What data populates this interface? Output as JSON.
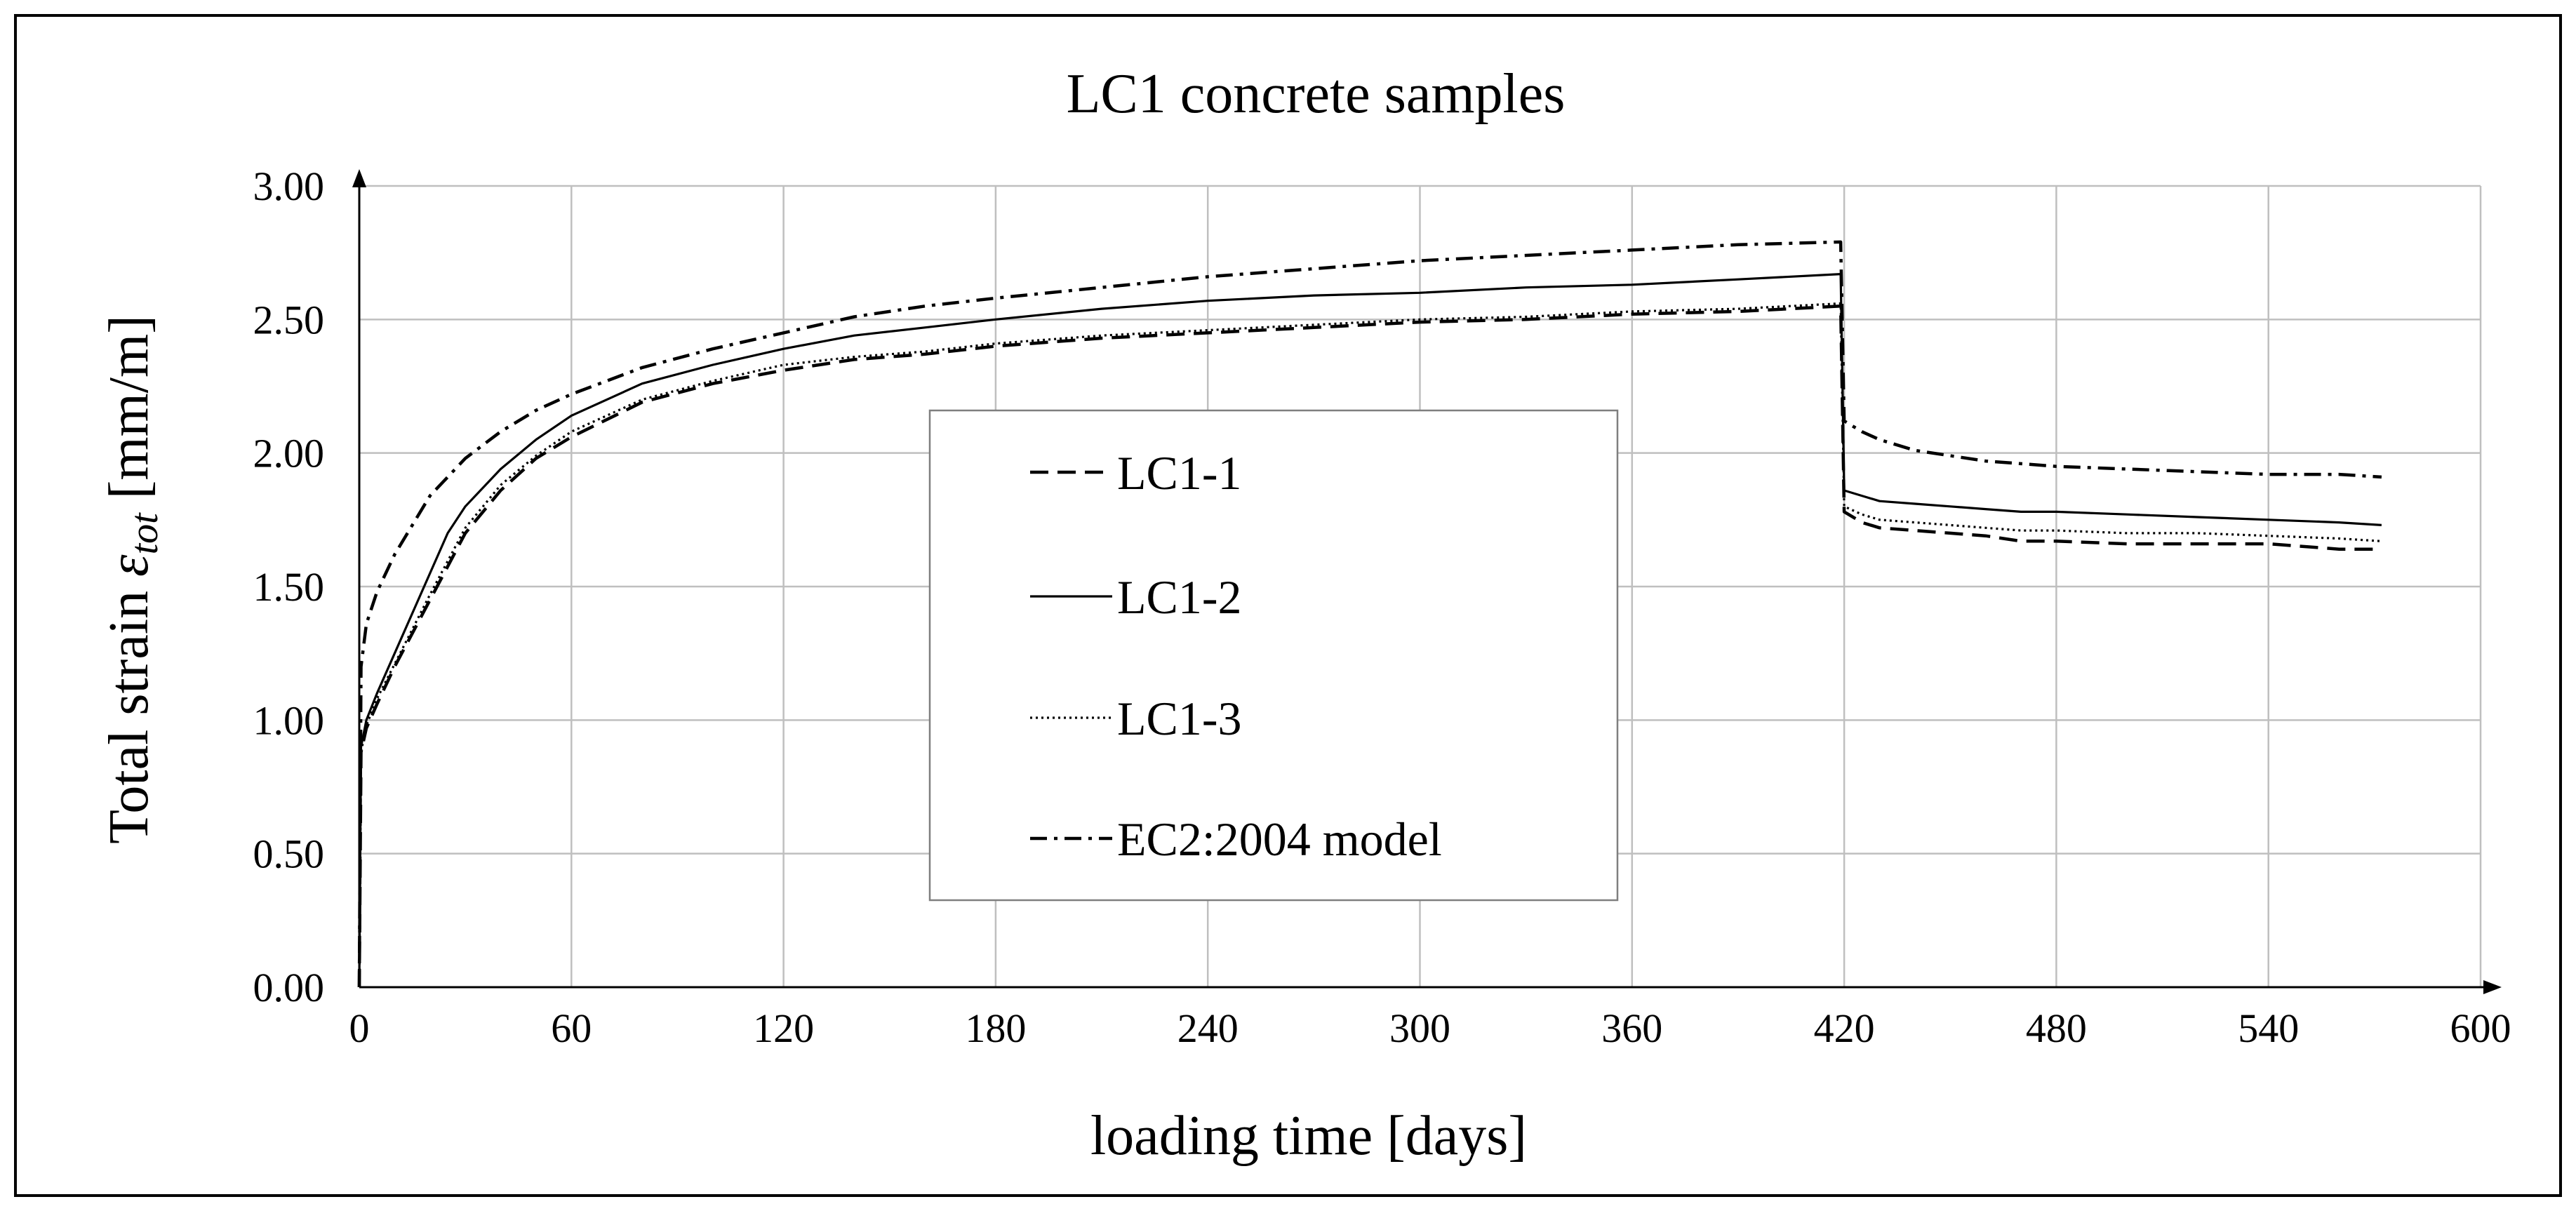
{
  "chart_data": {
    "type": "line",
    "title": "LC1 concrete samples",
    "xlabel": "loading time [days]",
    "ylabel": {
      "prefix": "Total strain ",
      "symbol": "ε",
      "subscript": "tot",
      "suffix": " [mm/m]"
    },
    "xlim": [
      0,
      600
    ],
    "ylim": [
      0,
      3
    ],
    "xticks": [
      "0",
      "60",
      "120",
      "180",
      "240",
      "300",
      "360",
      "420",
      "480",
      "540",
      "600"
    ],
    "yticks": [
      "0.00",
      "0.50",
      "1.00",
      "1.50",
      "2.00",
      "2.50",
      "3.00"
    ],
    "grid": true,
    "legend_position": "center",
    "series": [
      {
        "name": "LC1-1",
        "style": "dashed",
        "points": [
          [
            0,
            0
          ],
          [
            0.5,
            0.88
          ],
          [
            2,
            0.97
          ],
          [
            5,
            1.06
          ],
          [
            10,
            1.2
          ],
          [
            20,
            1.45
          ],
          [
            30,
            1.7
          ],
          [
            40,
            1.86
          ],
          [
            50,
            1.98
          ],
          [
            60,
            2.06
          ],
          [
            80,
            2.19
          ],
          [
            100,
            2.26
          ],
          [
            120,
            2.31
          ],
          [
            140,
            2.35
          ],
          [
            160,
            2.37
          ],
          [
            180,
            2.4
          ],
          [
            210,
            2.43
          ],
          [
            240,
            2.45
          ],
          [
            270,
            2.47
          ],
          [
            300,
            2.49
          ],
          [
            330,
            2.5
          ],
          [
            360,
            2.52
          ],
          [
            390,
            2.53
          ],
          [
            419,
            2.55
          ],
          [
            420,
            1.78
          ],
          [
            425,
            1.74
          ],
          [
            430,
            1.72
          ],
          [
            440,
            1.71
          ],
          [
            450,
            1.7
          ],
          [
            460,
            1.69
          ],
          [
            470,
            1.67
          ],
          [
            480,
            1.67
          ],
          [
            500,
            1.66
          ],
          [
            520,
            1.66
          ],
          [
            540,
            1.66
          ],
          [
            560,
            1.64
          ],
          [
            572,
            1.64
          ]
        ]
      },
      {
        "name": "LC1-2",
        "style": "solid",
        "points": [
          [
            0,
            0
          ],
          [
            0.5,
            0.9
          ],
          [
            2,
            1.0
          ],
          [
            5,
            1.1
          ],
          [
            10,
            1.25
          ],
          [
            20,
            1.55
          ],
          [
            25,
            1.7
          ],
          [
            30,
            1.8
          ],
          [
            40,
            1.94
          ],
          [
            50,
            2.05
          ],
          [
            60,
            2.14
          ],
          [
            80,
            2.26
          ],
          [
            100,
            2.33
          ],
          [
            120,
            2.39
          ],
          [
            140,
            2.44
          ],
          [
            160,
            2.47
          ],
          [
            180,
            2.5
          ],
          [
            210,
            2.54
          ],
          [
            240,
            2.57
          ],
          [
            270,
            2.59
          ],
          [
            300,
            2.6
          ],
          [
            330,
            2.62
          ],
          [
            360,
            2.63
          ],
          [
            390,
            2.65
          ],
          [
            419,
            2.67
          ],
          [
            420,
            1.86
          ],
          [
            425,
            1.84
          ],
          [
            430,
            1.82
          ],
          [
            440,
            1.81
          ],
          [
            450,
            1.8
          ],
          [
            460,
            1.79
          ],
          [
            470,
            1.78
          ],
          [
            480,
            1.78
          ],
          [
            500,
            1.77
          ],
          [
            520,
            1.76
          ],
          [
            540,
            1.75
          ],
          [
            560,
            1.74
          ],
          [
            572,
            1.73
          ]
        ]
      },
      {
        "name": "LC1-3",
        "style": "dotted",
        "points": [
          [
            0,
            0
          ],
          [
            0.5,
            0.88
          ],
          [
            2,
            0.98
          ],
          [
            5,
            1.08
          ],
          [
            10,
            1.21
          ],
          [
            20,
            1.47
          ],
          [
            30,
            1.72
          ],
          [
            40,
            1.88
          ],
          [
            50,
            1.99
          ],
          [
            60,
            2.08
          ],
          [
            80,
            2.2
          ],
          [
            100,
            2.27
          ],
          [
            120,
            2.33
          ],
          [
            140,
            2.36
          ],
          [
            160,
            2.38
          ],
          [
            180,
            2.41
          ],
          [
            210,
            2.44
          ],
          [
            240,
            2.46
          ],
          [
            270,
            2.48
          ],
          [
            300,
            2.5
          ],
          [
            330,
            2.51
          ],
          [
            360,
            2.53
          ],
          [
            390,
            2.54
          ],
          [
            419,
            2.56
          ],
          [
            420,
            1.8
          ],
          [
            425,
            1.77
          ],
          [
            430,
            1.75
          ],
          [
            440,
            1.74
          ],
          [
            450,
            1.73
          ],
          [
            460,
            1.72
          ],
          [
            470,
            1.71
          ],
          [
            480,
            1.71
          ],
          [
            500,
            1.7
          ],
          [
            520,
            1.7
          ],
          [
            540,
            1.69
          ],
          [
            560,
            1.68
          ],
          [
            572,
            1.67
          ]
        ]
      },
      {
        "name": "EC2:2004 model",
        "style": "dashdot",
        "points": [
          [
            0,
            0
          ],
          [
            0.5,
            1.2
          ],
          [
            2,
            1.36
          ],
          [
            5,
            1.48
          ],
          [
            10,
            1.62
          ],
          [
            20,
            1.84
          ],
          [
            30,
            1.98
          ],
          [
            40,
            2.08
          ],
          [
            50,
            2.16
          ],
          [
            60,
            2.22
          ],
          [
            80,
            2.32
          ],
          [
            100,
            2.39
          ],
          [
            120,
            2.45
          ],
          [
            140,
            2.51
          ],
          [
            160,
            2.55
          ],
          [
            180,
            2.58
          ],
          [
            210,
            2.62
          ],
          [
            240,
            2.66
          ],
          [
            270,
            2.69
          ],
          [
            300,
            2.72
          ],
          [
            330,
            2.74
          ],
          [
            360,
            2.76
          ],
          [
            390,
            2.78
          ],
          [
            419,
            2.79
          ],
          [
            420,
            2.12
          ],
          [
            425,
            2.08
          ],
          [
            430,
            2.05
          ],
          [
            440,
            2.01
          ],
          [
            450,
            1.99
          ],
          [
            460,
            1.97
          ],
          [
            470,
            1.96
          ],
          [
            480,
            1.95
          ],
          [
            500,
            1.94
          ],
          [
            520,
            1.93
          ],
          [
            540,
            1.92
          ],
          [
            560,
            1.92
          ],
          [
            572,
            1.91
          ]
        ]
      }
    ]
  }
}
